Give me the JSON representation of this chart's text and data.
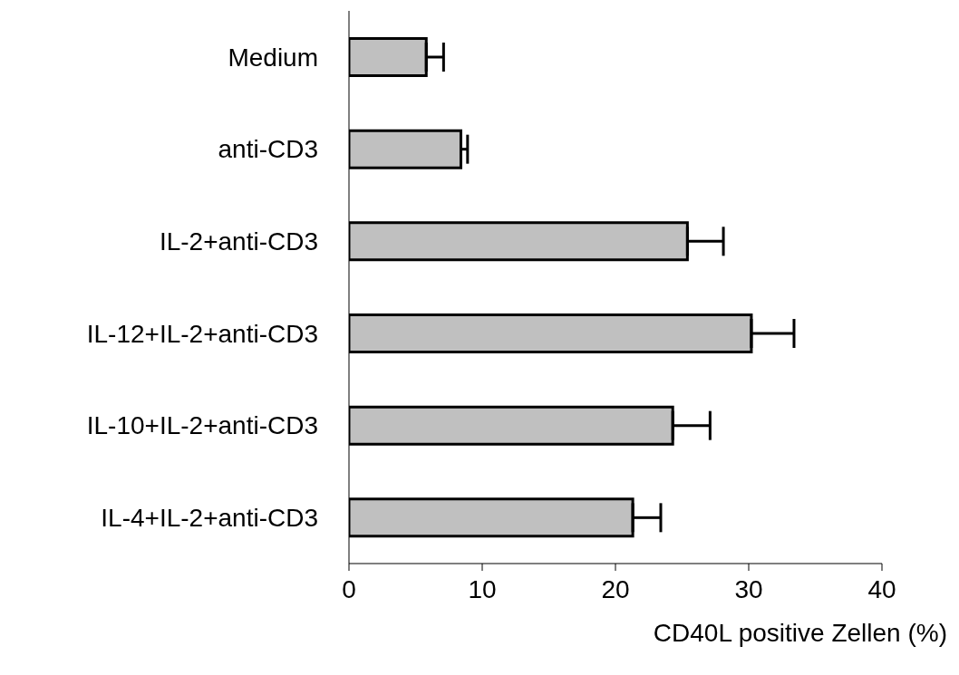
{
  "chart_data": {
    "type": "bar",
    "orientation": "horizontal",
    "xlabel": "CD40L positive Zellen (%)",
    "categories": [
      "Medium",
      "anti-CD3",
      "IL-2+anti-CD3",
      "IL-12+IL-2+anti-CD3",
      "IL-10+IL-2+anti-CD3",
      "IL-4+IL-2+anti-CD3"
    ],
    "values": [
      5.8,
      8.4,
      25.4,
      30.2,
      24.3,
      21.3
    ],
    "errors": [
      [
        5.8,
        7.1
      ],
      [
        8.4,
        8.9
      ],
      [
        25.4,
        28.1
      ],
      [
        30.2,
        33.4
      ],
      [
        24.3,
        27.1
      ],
      [
        21.3,
        23.4
      ]
    ],
    "color": "#c0c0c0",
    "xlim": [
      0,
      40
    ],
    "xticks": [
      0,
      10,
      20,
      30,
      40
    ],
    "grid": false,
    "legend": false
  }
}
